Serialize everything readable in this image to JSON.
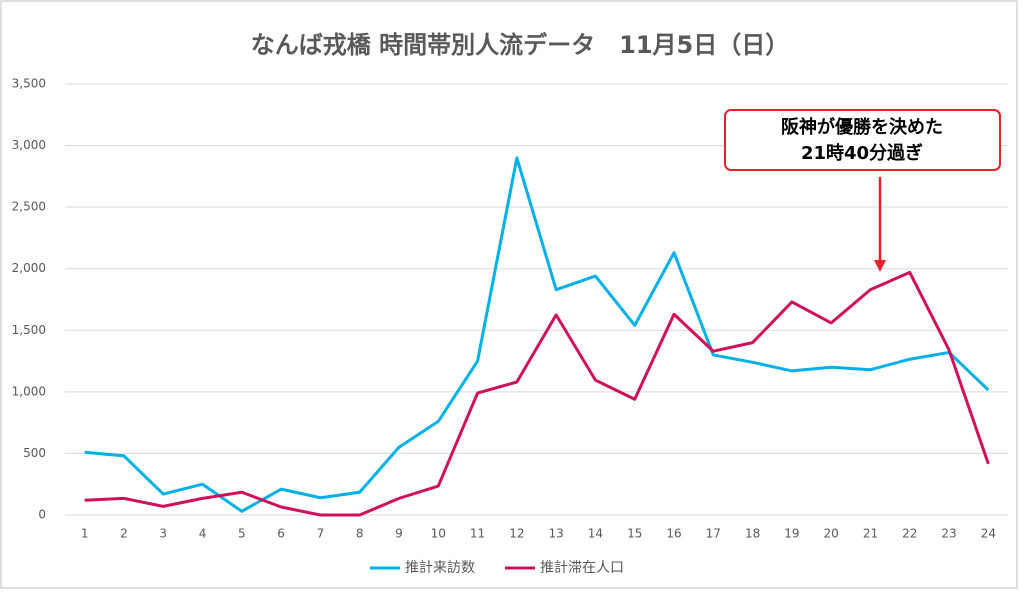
{
  "chart_data": {
    "type": "line",
    "title": "なんば戎橋 時間帯別人流データ　11月5日（日）",
    "categories": [
      1,
      2,
      3,
      4,
      5,
      6,
      7,
      8,
      9,
      10,
      11,
      12,
      13,
      14,
      15,
      16,
      17,
      18,
      19,
      20,
      21,
      22,
      23,
      24
    ],
    "series": [
      {
        "name": "推計来訪数",
        "color": "#00b0e8",
        "values": [
          510,
          480,
          170,
          250,
          30,
          210,
          140,
          185,
          550,
          760,
          1250,
          2900,
          1830,
          1940,
          1540,
          2130,
          1300,
          1240,
          1170,
          1200,
          1180,
          1265,
          1320,
          1015
        ]
      },
      {
        "name": "推計滞在人口",
        "color": "#d0105a",
        "values": [
          120,
          135,
          70,
          135,
          185,
          65,
          0,
          0,
          135,
          235,
          990,
          1080,
          1625,
          1095,
          940,
          1630,
          1330,
          1400,
          1730,
          1560,
          1830,
          1970,
          1340,
          415
        ]
      }
    ],
    "ylim": [
      0,
      3500
    ],
    "yticks": [
      0,
      500,
      {
        "value": 1000,
        "label": "1,000"
      },
      {
        "value": 1500,
        "label": "1,500"
      },
      {
        "value": 2000,
        "label": "2,000"
      },
      {
        "value": 2500,
        "label": "2,500"
      },
      {
        "value": 3000,
        "label": "3,000"
      },
      {
        "value": 3500,
        "label": "3,500"
      }
    ],
    "grid": true,
    "legend": "bottom",
    "annotation": [
      "阪神が優勝を決めた",
      "21時40分過ぎ"
    ]
  }
}
